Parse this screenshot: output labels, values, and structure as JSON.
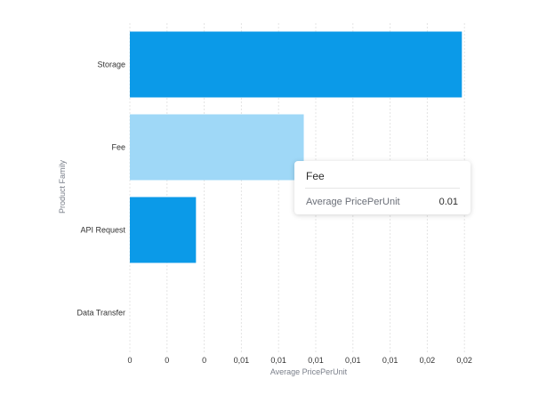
{
  "chart_data": {
    "type": "bar",
    "orientation": "horizontal",
    "categories": [
      "Storage",
      "Fee",
      "API Request",
      "Data Transfer"
    ],
    "values": [
      0.0231,
      0.0121,
      0.0046,
      0
    ],
    "xlabel": "Average PricePerUnit",
    "ylabel": "Product Family",
    "xlim": [
      0,
      0.025
    ],
    "x_tick_labels": [
      "0",
      "0",
      "0",
      "0,01",
      "0,01",
      "0,01",
      "0,01",
      "0,01",
      "0,02",
      "0,02"
    ],
    "grid": "vertical",
    "highlighted_category": "Fee"
  },
  "colors": {
    "bar": "#0b9ae8",
    "bar_highlight": "#9fd8f7",
    "grid": "#e4e4e4",
    "axis_text": "#333333",
    "axis_title": "#7a7f8a"
  },
  "tooltip": {
    "title": "Fee",
    "label": "Average PricePerUnit",
    "value": "0.01"
  }
}
